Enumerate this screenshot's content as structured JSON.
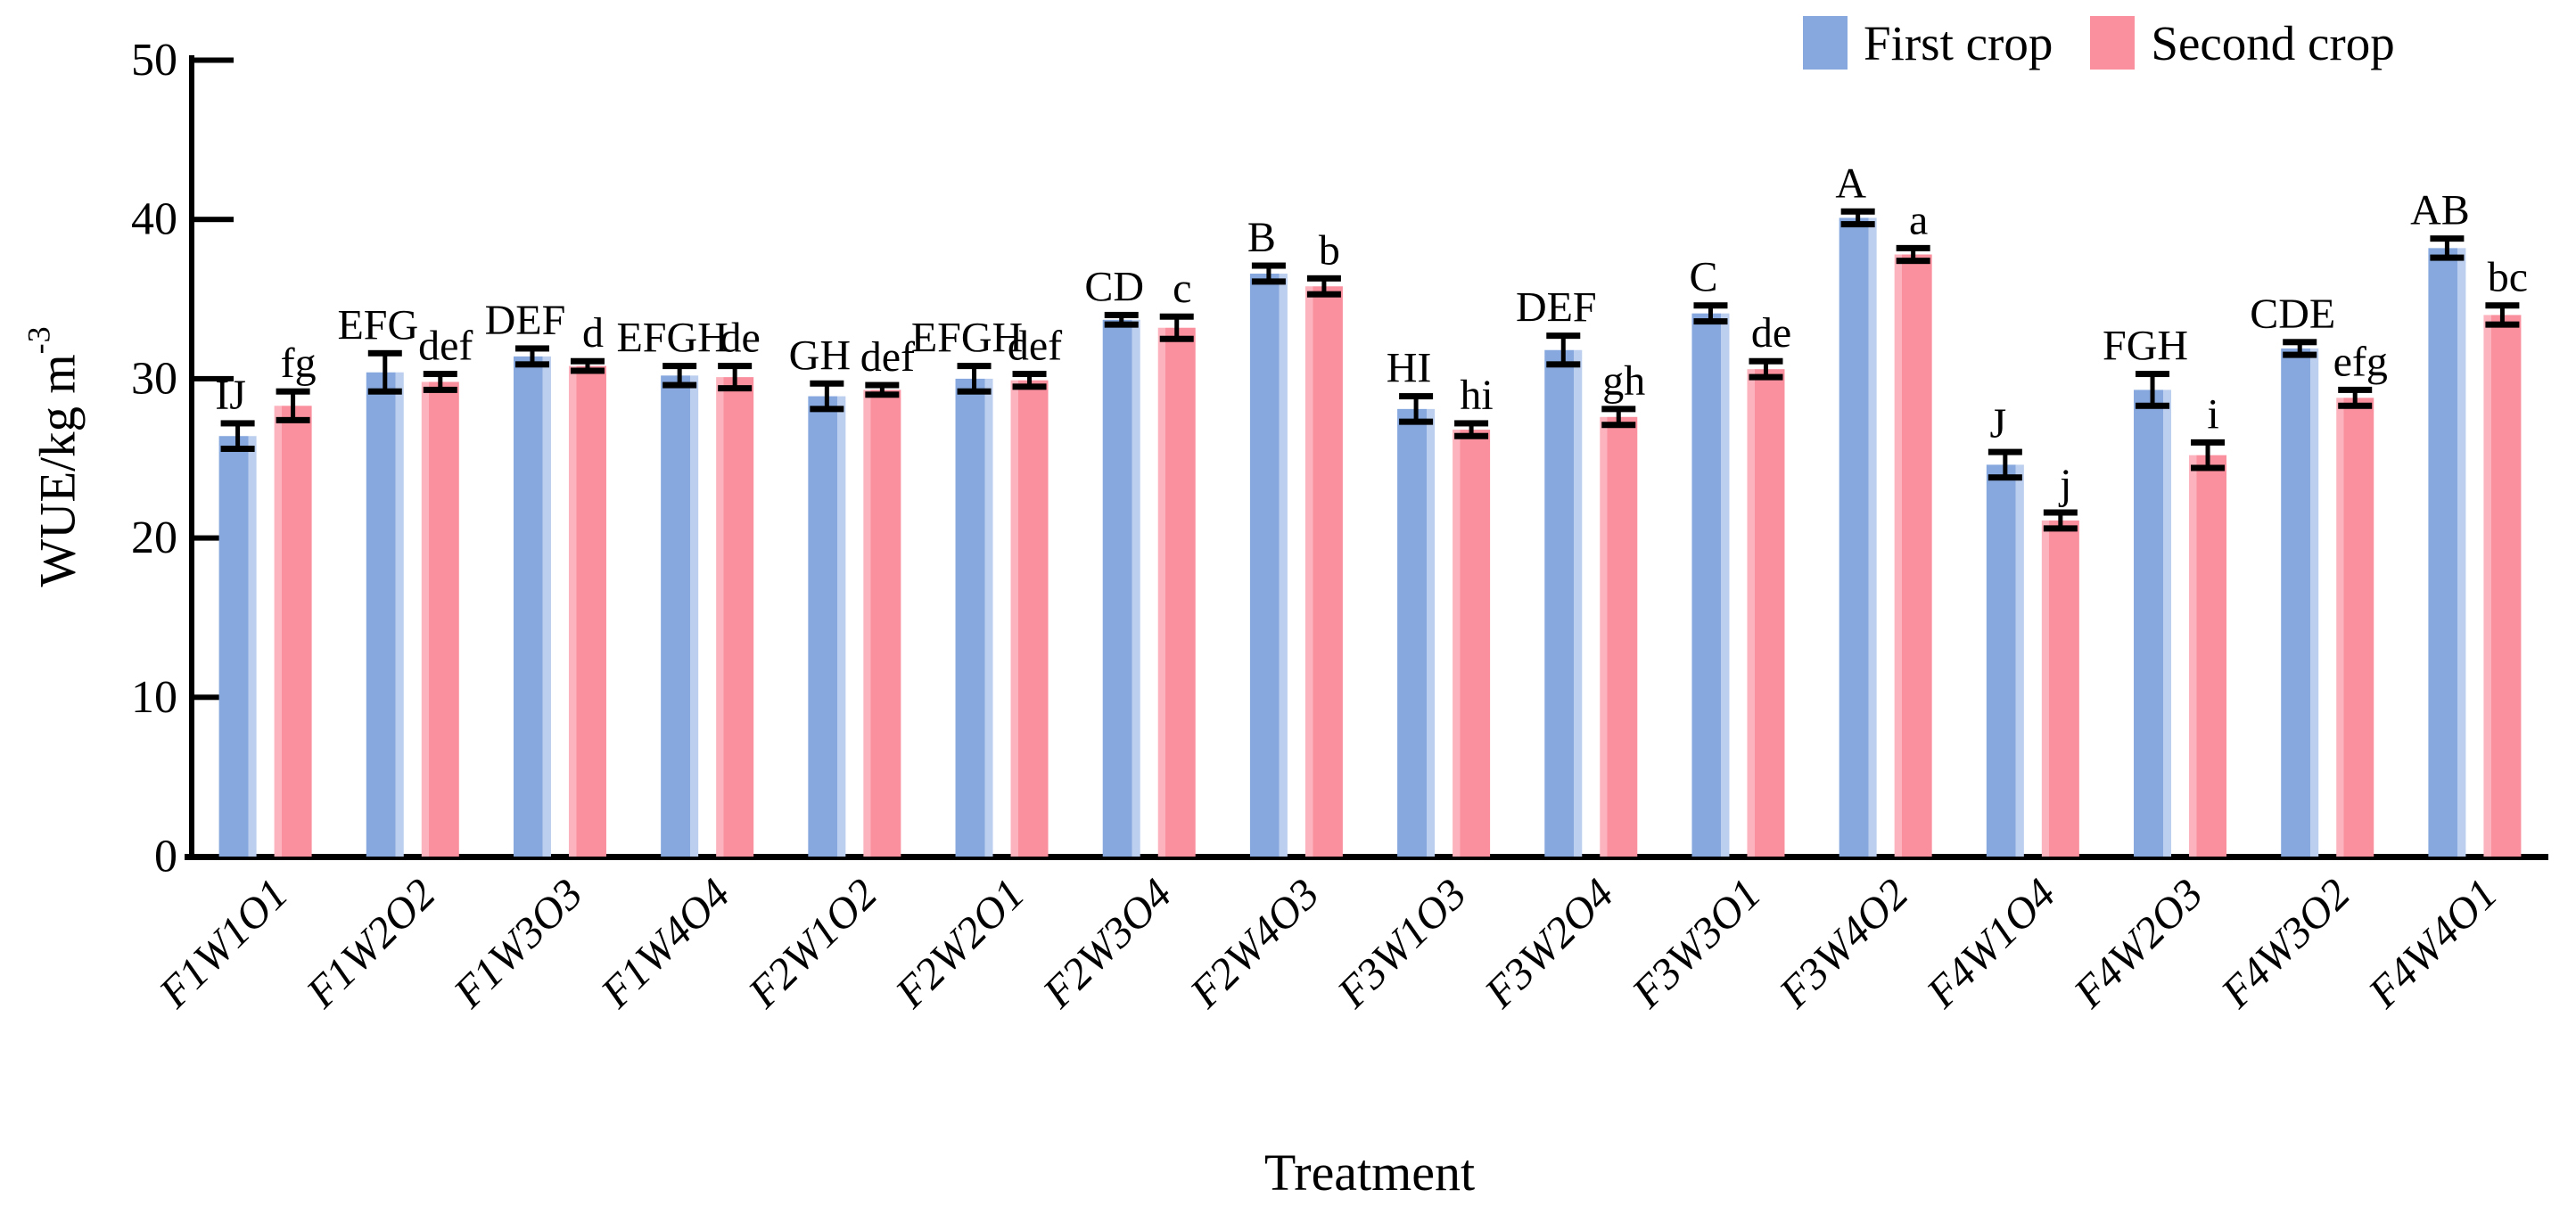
{
  "chart_data": {
    "type": "bar",
    "title": "",
    "xlabel": "Treatment",
    "ylabel": "WUE/kg m",
    "ylabel_superscript": "-3",
    "ylim": [
      0,
      50
    ],
    "yticks": [
      0,
      10,
      20,
      30,
      40,
      50
    ],
    "grid": false,
    "legend_position": "top-right",
    "error_bars": true,
    "categories": [
      "F1W1O1",
      "F1W2O2",
      "F1W3O3",
      "F1W4O4",
      "F2W1O2",
      "F2W2O1",
      "F2W3O4",
      "F2W4O3",
      "F3W1O3",
      "F3W2O4",
      "F3W3O1",
      "F3W4O2",
      "F4W1O4",
      "F4W2O3",
      "F4W3O2",
      "F4W4O1"
    ],
    "series": [
      {
        "name": "First crop",
        "color": "#86a8de",
        "highlight": "#bdcfee",
        "values": [
          26.4,
          30.4,
          31.4,
          30.2,
          28.9,
          30.0,
          33.7,
          36.6,
          28.1,
          31.8,
          34.1,
          40.1,
          24.6,
          29.3,
          31.9,
          38.2
        ],
        "errors": [
          0.8,
          1.2,
          0.5,
          0.6,
          0.8,
          0.8,
          0.3,
          0.5,
          0.8,
          0.9,
          0.5,
          0.4,
          0.8,
          1.0,
          0.4,
          0.6
        ],
        "sig_labels": [
          "IJ",
          "EFG",
          "DEF",
          "EFGH",
          "GH",
          "EFGH",
          "CD",
          "B",
          "HI",
          "DEF",
          "C",
          "A",
          "J",
          "FGH",
          "CDE",
          "AB"
        ]
      },
      {
        "name": "Second crop",
        "color": "#fa8f9e",
        "highlight": "#fcb3bd",
        "values": [
          28.3,
          29.8,
          30.8,
          30.1,
          29.3,
          29.9,
          33.2,
          35.8,
          26.8,
          27.6,
          30.6,
          37.8,
          21.1,
          25.2,
          28.8,
          34.0
        ],
        "errors": [
          0.9,
          0.5,
          0.3,
          0.7,
          0.3,
          0.4,
          0.7,
          0.5,
          0.4,
          0.5,
          0.5,
          0.4,
          0.5,
          0.8,
          0.5,
          0.6
        ],
        "sig_labels": [
          "fg",
          "def",
          "d",
          "de",
          "def",
          "def",
          "c",
          "b",
          "hi",
          "gh",
          "de",
          "a",
          "j",
          "i",
          "efg",
          "bc"
        ]
      }
    ]
  },
  "axis": {
    "color": "#000000"
  }
}
